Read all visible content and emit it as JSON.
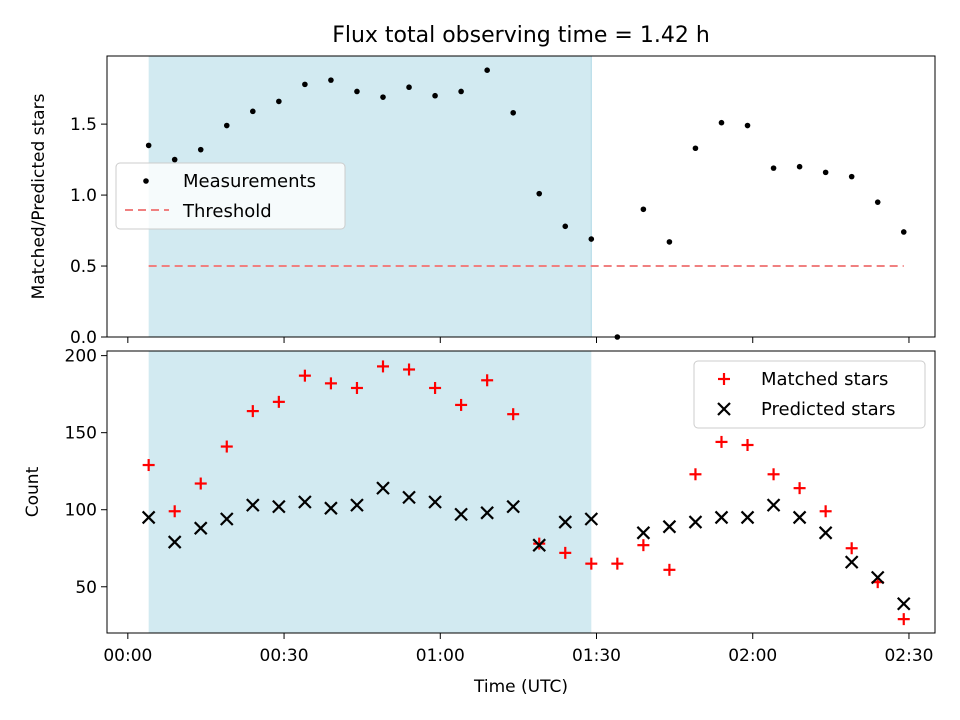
{
  "title": "Flux total observing time = 1.42 h",
  "colors": {
    "shade": "#add8e6",
    "threshold": "#f08080",
    "matched": "#ff0000",
    "predicted": "#000000",
    "measure": "#000000"
  },
  "chart_data": [
    {
      "type": "scatter",
      "title": "Flux total observing time = 1.42 h",
      "ylabel": "Matched/Predicted stars",
      "xlabel": "",
      "ylim": [
        0,
        1.98
      ],
      "yticks": [
        0.0,
        0.5,
        1.0,
        1.5
      ],
      "ytick_labels": [
        "0.0",
        "0.5",
        "1.0",
        "1.5"
      ],
      "shaded_region_minutes": [
        4,
        89
      ],
      "legend_position": "center-left",
      "legend": [
        "Measurements",
        "Threshold"
      ],
      "x": [
        4,
        9,
        14,
        19,
        24,
        29,
        34,
        39,
        44,
        49,
        54,
        59,
        64,
        69,
        74,
        79,
        84,
        89,
        94,
        99,
        104,
        109,
        114,
        119,
        124,
        129,
        134,
        139,
        144,
        149
      ],
      "series": [
        {
          "name": "Measurements",
          "values": [
            1.35,
            1.25,
            1.32,
            1.49,
            1.59,
            1.66,
            1.78,
            1.81,
            1.73,
            1.69,
            1.76,
            1.7,
            1.73,
            1.88,
            1.58,
            1.01,
            0.78,
            0.69,
            0.0,
            0.9,
            0.67,
            1.33,
            1.51,
            1.49,
            1.19,
            1.2,
            1.16,
            1.13,
            0.95,
            0.74
          ]
        },
        {
          "name": "Threshold",
          "x": [
            4,
            149
          ],
          "values": [
            0.5,
            0.5
          ]
        }
      ]
    },
    {
      "type": "scatter",
      "xlabel": "Time (UTC)",
      "ylabel": "Count",
      "ylim": [
        20,
        203
      ],
      "yticks": [
        50,
        100,
        150,
        200
      ],
      "ytick_labels": [
        "50",
        "100",
        "150",
        "200"
      ],
      "xlim_minutes": [
        -4,
        155
      ],
      "xticks_minutes": [
        0,
        30,
        60,
        90,
        120,
        150
      ],
      "xtick_labels": [
        "00:00",
        "00:30",
        "01:00",
        "01:30",
        "02:00",
        "02:30"
      ],
      "shaded_region_minutes": [
        4,
        89
      ],
      "legend_position": "top-right",
      "legend": [
        "Matched stars",
        "Predicted stars"
      ],
      "x": [
        4,
        9,
        14,
        19,
        24,
        29,
        34,
        39,
        44,
        49,
        54,
        59,
        64,
        69,
        74,
        79,
        84,
        89,
        94,
        99,
        104,
        109,
        114,
        119,
        124,
        129,
        134,
        139,
        144,
        149
      ],
      "series": [
        {
          "name": "Matched stars",
          "values": [
            129,
            99,
            117,
            141,
            164,
            170,
            187,
            182,
            179,
            193,
            191,
            179,
            168,
            184,
            162,
            78,
            72,
            65,
            65,
            77,
            61,
            123,
            144,
            142,
            123,
            114,
            99,
            75,
            53,
            29
          ]
        },
        {
          "name": "Predicted stars",
          "values": [
            95,
            79,
            88,
            94,
            103,
            102,
            105,
            101,
            103,
            114,
            108,
            105,
            97,
            98,
            102,
            77,
            92,
            94,
            null,
            85,
            89,
            92,
            95,
            95,
            103,
            95,
            85,
            66,
            56,
            39
          ]
        }
      ]
    }
  ]
}
